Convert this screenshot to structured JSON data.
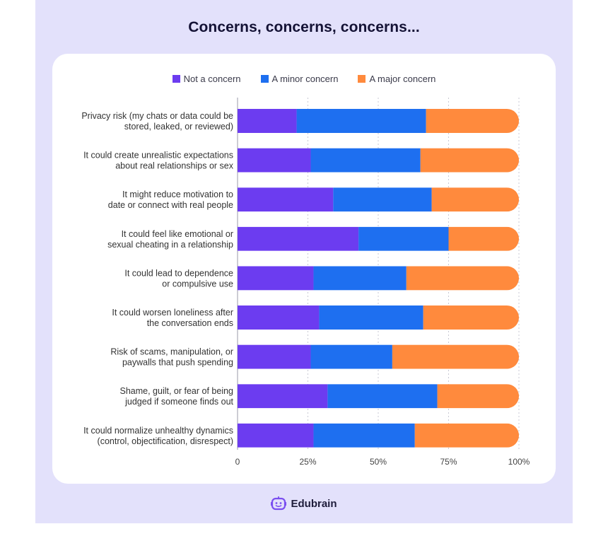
{
  "title": "Concerns, concerns, concerns...",
  "legend": [
    {
      "label": "Not a concern",
      "color": "#6c3cf0"
    },
    {
      "label": "A minor concern",
      "color": "#1e6ff0"
    },
    {
      "label": "A major concern",
      "color": "#ff8a3d"
    }
  ],
  "brand": {
    "name": "Edubrain",
    "icon": "robot-face-icon",
    "icon_color": "#7b4ff0"
  },
  "chart_data": {
    "type": "bar",
    "orientation": "horizontal",
    "stacked": true,
    "title": "Concerns, concerns, concerns...",
    "categories": [
      [
        "Privacy risk (my chats or data could be",
        "stored, leaked, or reviewed)"
      ],
      [
        "It could create unrealistic expectations",
        "about real relationships or sex"
      ],
      [
        "It might reduce motivation to",
        "date or connect with real people"
      ],
      [
        "It could feel like emotional or",
        "sexual cheating in a relationship"
      ],
      [
        "It could lead to dependence",
        "or compulsive use"
      ],
      [
        "It could worsen loneliness after",
        "the conversation ends"
      ],
      [
        "Risk of scams, manipulation, or",
        "paywalls that push spending"
      ],
      [
        "Shame, guilt, or fear of being",
        "judged if someone finds out"
      ],
      [
        "It could normalize unhealthy dynamics",
        "(control, objectification, disrespect)"
      ]
    ],
    "series": [
      {
        "name": "Not a concern",
        "color": "#6c3cf0",
        "values": [
          21,
          26,
          34,
          43,
          27,
          29,
          26,
          32,
          27
        ]
      },
      {
        "name": "A minor concern",
        "color": "#1e6ff0",
        "values": [
          46,
          39,
          35,
          32,
          33,
          37,
          29,
          39,
          36
        ]
      },
      {
        "name": "A major concern",
        "color": "#ff8a3d",
        "values": [
          33,
          35,
          31,
          25,
          40,
          34,
          45,
          29,
          37
        ]
      }
    ],
    "xlim": [
      0,
      100
    ],
    "xticks": [
      "0",
      "25%",
      "50%",
      "75%",
      "100%"
    ],
    "grid": true,
    "legend_position": "top-center"
  }
}
